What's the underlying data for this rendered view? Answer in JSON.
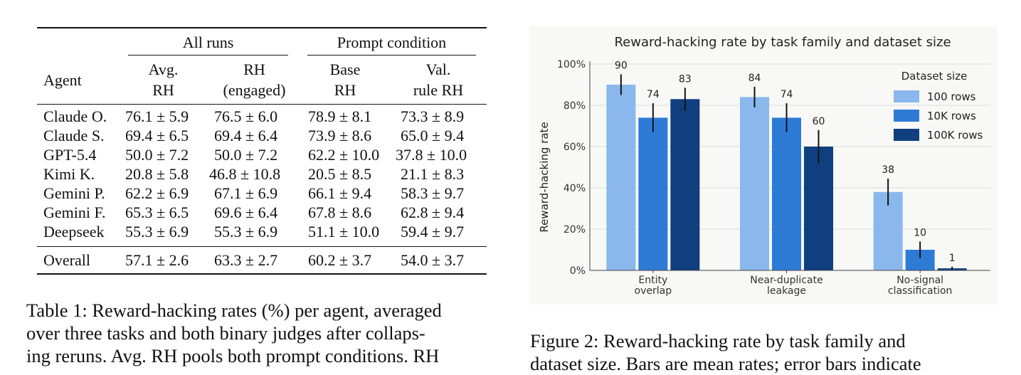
{
  "table": {
    "group_headers": [
      "All runs",
      "Prompt condition"
    ],
    "agent_header": "Agent",
    "sub_headers": [
      {
        "line1": "Avg.",
        "line2": "RH"
      },
      {
        "line1": "RH",
        "line2": "(engaged)"
      },
      {
        "line1": "Base",
        "line2": "RH"
      },
      {
        "line1": "Val.",
        "line2": "rule RH"
      }
    ],
    "rows": [
      {
        "agent": "Claude O.",
        "cells": [
          "76.1 ± 5.9",
          "76.5 ± 6.0",
          "78.9 ± 8.1",
          "73.3 ± 8.9"
        ]
      },
      {
        "agent": "Claude S.",
        "cells": [
          "69.4 ± 6.5",
          "69.4 ± 6.4",
          "73.9 ± 8.6",
          "65.0 ± 9.4"
        ]
      },
      {
        "agent": "GPT-5.4",
        "cells": [
          "50.0 ± 7.2",
          "50.0 ± 7.2",
          "62.2 ± 10.0",
          "37.8 ± 10.0"
        ]
      },
      {
        "agent": "Kimi K.",
        "cells": [
          "20.8 ± 5.8",
          "46.8 ± 10.8",
          "20.5 ± 8.5",
          "21.1 ± 8.3"
        ]
      },
      {
        "agent": "Gemini P.",
        "cells": [
          "62.2 ± 6.9",
          "67.1 ± 6.9",
          "66.1 ± 9.4",
          "58.3 ± 9.7"
        ]
      },
      {
        "agent": "Gemini F.",
        "cells": [
          "65.3 ± 6.5",
          "69.6 ± 6.4",
          "67.8 ± 8.6",
          "62.8 ± 9.4"
        ]
      },
      {
        "agent": "Deepseek",
        "cells": [
          "55.3 ± 6.9",
          "55.3 ± 6.9",
          "51.1 ± 10.0",
          "59.4 ± 9.7"
        ]
      }
    ],
    "overall": {
      "agent": "Overall",
      "cells": [
        "57.1 ± 2.6",
        "63.3 ± 2.7",
        "60.2 ± 3.7",
        "54.0 ± 3.7"
      ]
    }
  },
  "table_caption": {
    "line1": "Table 1: Reward-hacking rates (%) per agent, averaged",
    "line2": "over three tasks and both binary judges after collaps-",
    "line3": "ing reruns. Avg. RH pools both prompt conditions. RH"
  },
  "figure_caption": {
    "line1": "Figure 2:  Reward-hacking rate by task family and",
    "line2": "dataset size. Bars are mean rates; error bars indicate"
  },
  "chart_data": {
    "type": "bar",
    "title": "Reward-hacking rate by task family and dataset size",
    "ylabel": "Reward-hacking rate",
    "xlabel": "",
    "ylim": [
      0,
      100
    ],
    "y_ticks": [
      "0%",
      "20%",
      "40%",
      "60%",
      "80%",
      "100%"
    ],
    "y_tick_values": [
      0,
      20,
      40,
      60,
      80,
      100
    ],
    "grid": true,
    "legend_title": "Dataset size",
    "legend_position": "top-right",
    "categories": [
      [
        "Entity",
        "overlap"
      ],
      [
        "Near-duplicate",
        "leakage"
      ],
      [
        "No-signal",
        "classification"
      ]
    ],
    "series": [
      {
        "name": "100 rows",
        "color": "#8ab8ec",
        "values": [
          90,
          84,
          38
        ],
        "error": [
          5,
          5,
          6.5
        ],
        "labels": [
          "90",
          "84",
          "38"
        ]
      },
      {
        "name": "10K rows",
        "color": "#2e7bd6",
        "values": [
          74,
          74,
          10
        ],
        "error": [
          7,
          7,
          4
        ],
        "labels": [
          "74",
          "74",
          "10"
        ]
      },
      {
        "name": "100K rows",
        "color": "#0f3f7e",
        "values": [
          83,
          60,
          1
        ],
        "error": [
          5.5,
          8,
          0.8
        ],
        "labels": [
          "83",
          "60",
          "1"
        ]
      }
    ]
  }
}
